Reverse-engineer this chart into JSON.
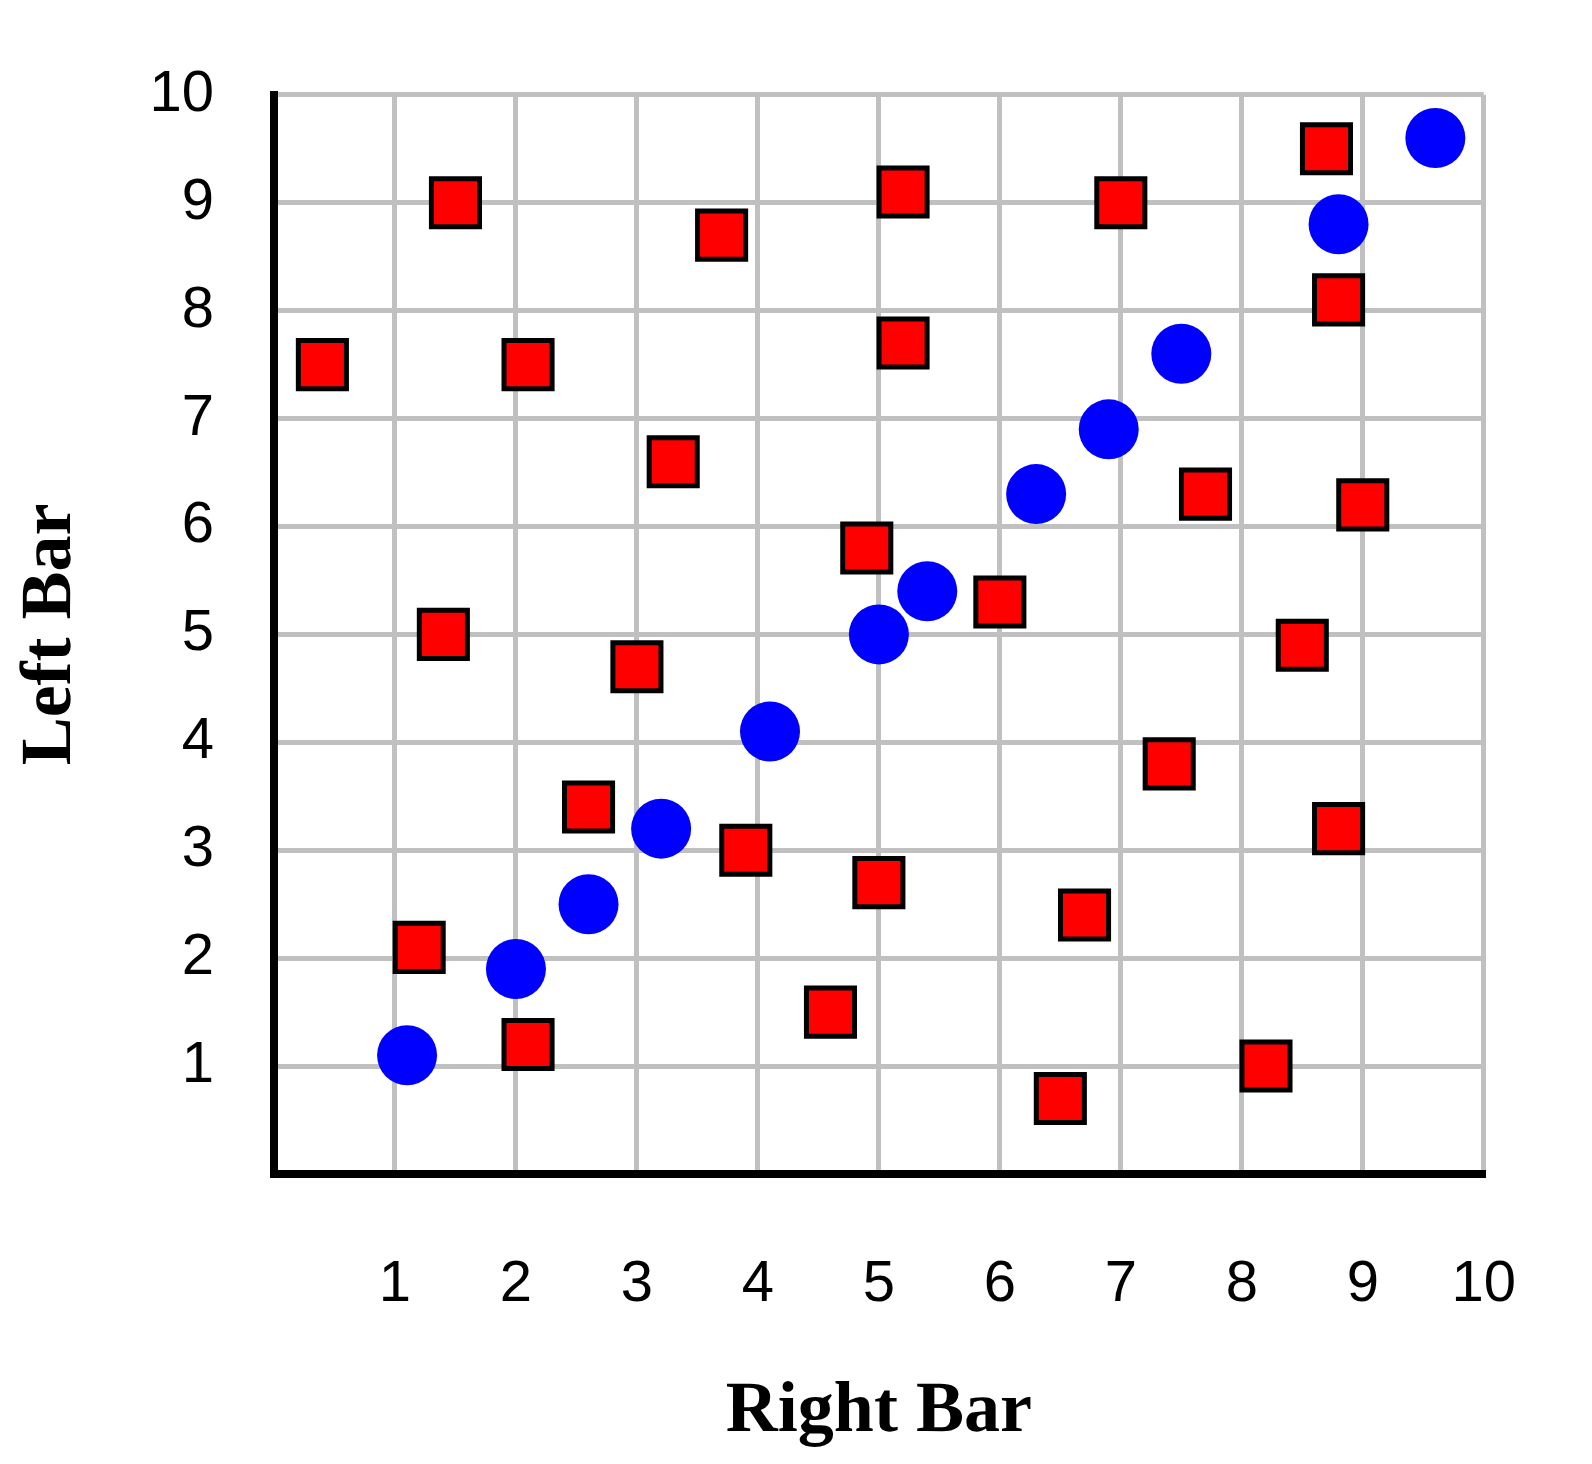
{
  "chart_data": {
    "type": "scatter",
    "xlabel": "Right Bar",
    "ylabel": "Left Bar",
    "series": [
      {
        "color": "#0000ff",
        "marker": "circle",
        "x": [
          1.1,
          2.0,
          2.6,
          3.2,
          4.1,
          5.0,
          5.4,
          6.3,
          6.9,
          7.5,
          8.8,
          9.6
        ],
        "values": [
          1.1,
          1.9,
          2.5,
          3.2,
          4.1,
          5.0,
          5.4,
          6.3,
          6.9,
          7.6,
          8.8,
          9.6
        ]
      },
      {
        "color": "#ff0000",
        "marker": "square",
        "x": [
          0.4,
          1.5,
          2.1,
          3.7,
          3.3,
          1.4,
          3.0,
          2.6,
          3.9,
          1.2,
          2.1,
          4.6,
          5.0,
          5.2,
          5.2,
          4.9,
          6.0,
          7.0,
          8.7,
          8.8,
          7.7,
          9.0,
          8.5,
          7.4,
          8.8,
          6.7,
          6.5,
          8.2
        ],
        "values": [
          7.5,
          9.0,
          7.5,
          8.7,
          6.6,
          5.0,
          4.7,
          3.4,
          3.0,
          2.1,
          1.2,
          1.5,
          2.7,
          9.1,
          7.7,
          5.8,
          5.3,
          9.0,
          9.5,
          8.1,
          6.3,
          6.2,
          4.9,
          3.8,
          3.2,
          2.4,
          0.7,
          1.0
        ]
      }
    ],
    "xlim": [
      0,
      10
    ],
    "xticks": [
      1,
      2,
      3,
      4,
      5,
      6,
      7,
      8,
      9,
      10
    ],
    "ylim": [
      0,
      10
    ],
    "yticks": [
      1,
      2,
      3,
      4,
      5,
      6,
      7,
      8,
      9,
      10
    ],
    "grid": true,
    "legend": false
  }
}
